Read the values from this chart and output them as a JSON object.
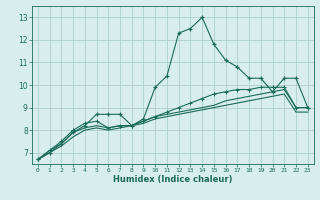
{
  "xlabel": "Humidex (Indice chaleur)",
  "x": [
    0,
    1,
    2,
    3,
    4,
    5,
    6,
    7,
    8,
    9,
    10,
    11,
    12,
    13,
    14,
    15,
    16,
    17,
    18,
    19,
    20,
    21,
    22,
    23
  ],
  "line1": [
    6.7,
    7.0,
    7.4,
    7.9,
    8.2,
    8.7,
    8.7,
    8.7,
    8.2,
    8.5,
    9.9,
    10.4,
    12.3,
    12.5,
    13.0,
    11.8,
    11.1,
    10.8,
    10.3,
    10.3,
    9.7,
    10.3,
    10.3,
    9.0
  ],
  "line2": [
    6.7,
    7.1,
    7.5,
    8.0,
    8.3,
    8.4,
    8.1,
    8.2,
    8.2,
    8.4,
    8.6,
    8.8,
    9.0,
    9.2,
    9.4,
    9.6,
    9.7,
    9.8,
    9.8,
    9.9,
    9.9,
    9.9,
    9.0,
    9.0
  ],
  "line3": [
    6.7,
    7.1,
    7.4,
    7.9,
    8.1,
    8.2,
    8.1,
    8.2,
    8.2,
    8.4,
    8.6,
    8.7,
    8.8,
    8.9,
    9.0,
    9.1,
    9.3,
    9.4,
    9.5,
    9.6,
    9.7,
    9.8,
    9.0,
    9.0
  ],
  "line4": [
    6.7,
    7.0,
    7.3,
    7.7,
    8.0,
    8.1,
    8.0,
    8.1,
    8.2,
    8.3,
    8.5,
    8.6,
    8.7,
    8.8,
    8.9,
    9.0,
    9.1,
    9.2,
    9.3,
    9.4,
    9.5,
    9.6,
    8.8,
    8.8
  ],
  "line_color": "#1a6b5a",
  "bg_color": "#d8eeec",
  "grid_color": "#aed0cc",
  "ylim": [
    6.5,
    13.5
  ],
  "xlim": [
    -0.5,
    23.5
  ],
  "yticks": [
    7,
    8,
    9,
    10,
    11,
    12,
    13
  ],
  "xticks": [
    0,
    1,
    2,
    3,
    4,
    5,
    6,
    7,
    8,
    9,
    10,
    11,
    12,
    13,
    14,
    15,
    16,
    17,
    18,
    19,
    20,
    21,
    22,
    23
  ]
}
